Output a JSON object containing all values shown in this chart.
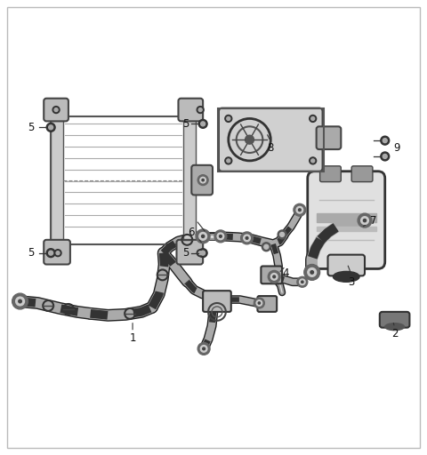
{
  "bg": "#ffffff",
  "lc": "#3a3a3a",
  "hose_outer": "#555555",
  "hose_mid": "#888888",
  "hose_inner": "#cccccc",
  "label_color": "#111111",
  "label_fontsize": 8.5
}
